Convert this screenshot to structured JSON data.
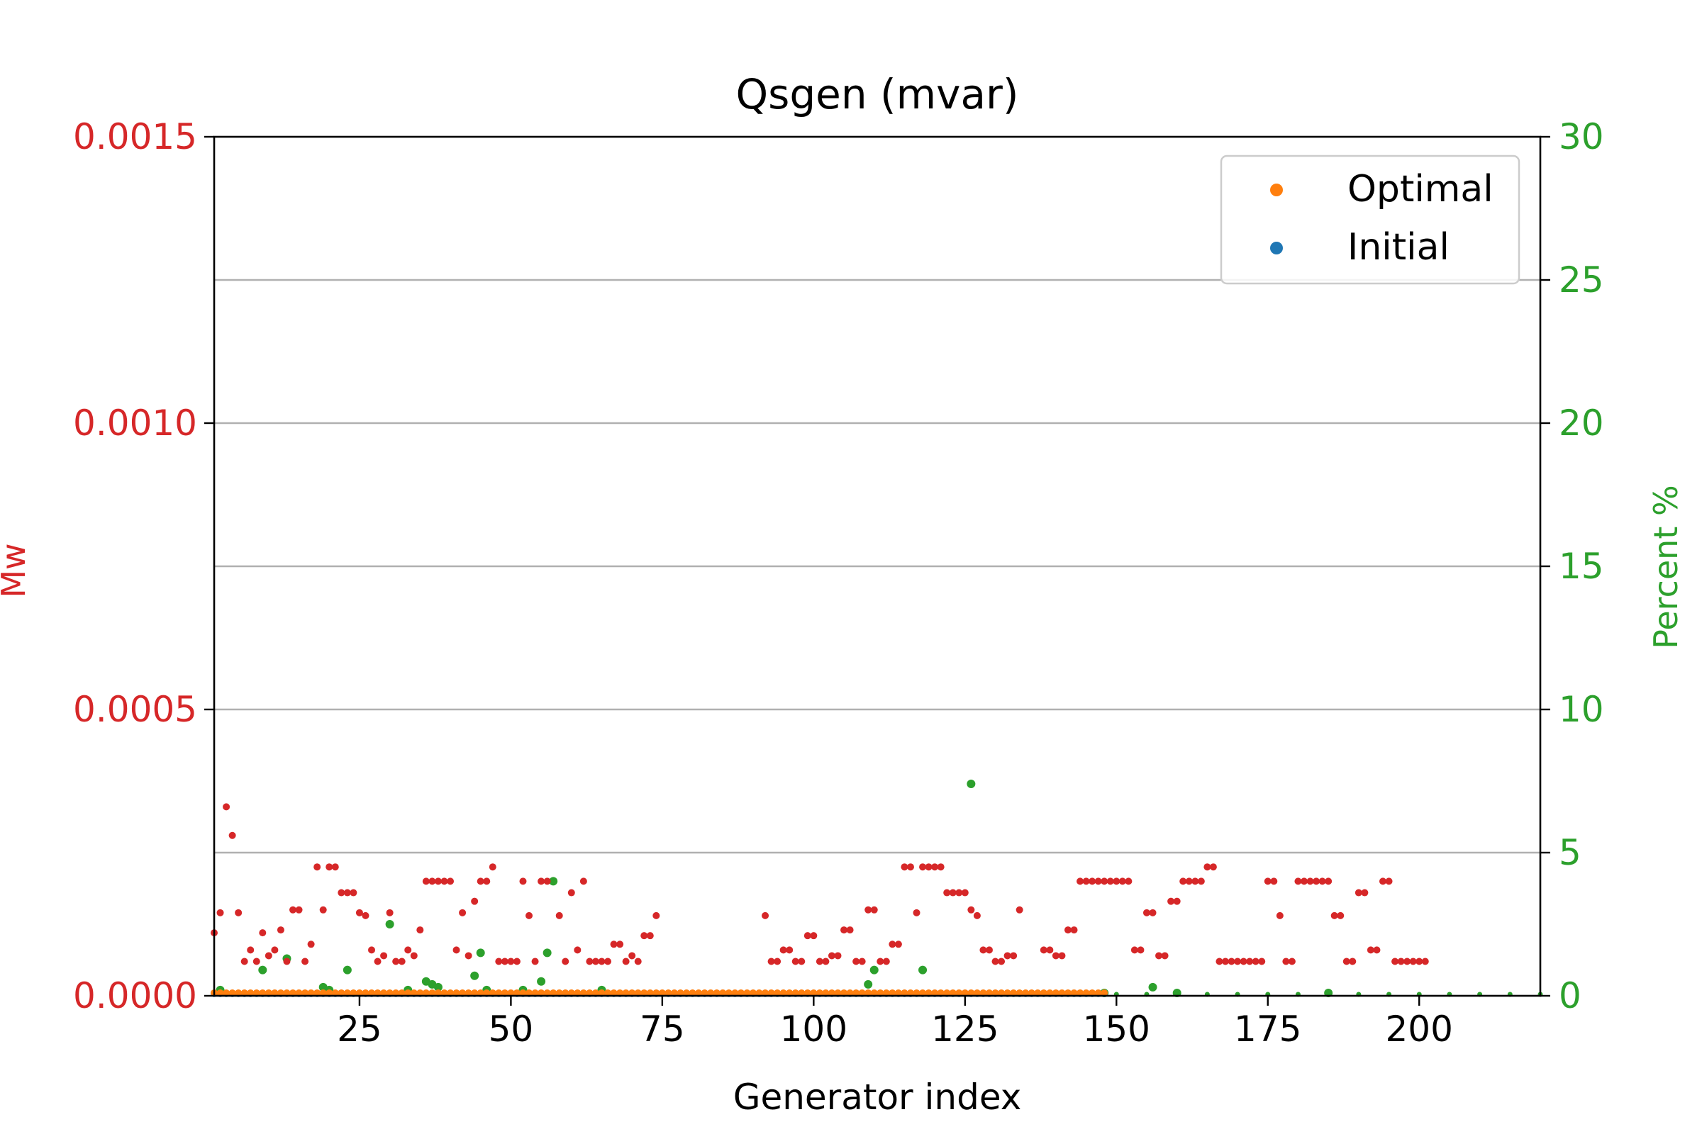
{
  "chart_data": {
    "type": "scatter",
    "title": "Qsgen (mvar)",
    "xlabel": "Generator index",
    "ylabel_left": "Mw",
    "ylabel_right": "Percent %",
    "xlim": [
      1,
      220
    ],
    "ylim_left": [
      0,
      0.0015
    ],
    "ylim_right": [
      0,
      30
    ],
    "x_ticks": [
      25,
      50,
      75,
      100,
      125,
      150,
      175,
      200
    ],
    "y_left_ticks": [
      "0.0000",
      "0.0005",
      "0.0010",
      "0.0015"
    ],
    "y_right_ticks": [
      "0",
      "5",
      "10",
      "15",
      "20",
      "25",
      "30"
    ],
    "grid": "horizontal",
    "legend_position": "top-right",
    "colors": {
      "left_axis": "#d62728",
      "right_axis": "#2ca02c",
      "optimal": "#ff7f0e",
      "initial": "#1f77b4",
      "difference": "#d62728",
      "percent": "#2ca02c",
      "grid": "#b0b0b0"
    },
    "series": [
      {
        "name": "Optimal",
        "axis": "left",
        "color": "#ff7f0e",
        "x_range": [
          1,
          148
        ],
        "value": 5e-06
      },
      {
        "name": "Initial",
        "axis": "left",
        "color": "#1f77b4",
        "x_range": [
          1,
          148
        ],
        "value": 4e-06
      },
      {
        "axis": "left",
        "color": "#d62728",
        "points": [
          [
            1,
            0.00011
          ],
          [
            2,
            0.000145
          ],
          [
            3,
            0.00033
          ],
          [
            4,
            0.00028
          ],
          [
            5,
            0.000145
          ],
          [
            6,
            6e-05
          ],
          [
            7,
            8e-05
          ],
          [
            8,
            6e-05
          ],
          [
            9,
            0.00011
          ],
          [
            10,
            7e-05
          ],
          [
            11,
            8e-05
          ],
          [
            12,
            0.000115
          ],
          [
            13,
            6e-05
          ],
          [
            14,
            0.00015
          ],
          [
            15,
            0.00015
          ],
          [
            16,
            6e-05
          ],
          [
            17,
            9e-05
          ],
          [
            18,
            0.000225
          ],
          [
            19,
            0.00015
          ],
          [
            20,
            0.000225
          ],
          [
            21,
            0.000225
          ],
          [
            22,
            0.00018
          ],
          [
            23,
            0.00018
          ],
          [
            24,
            0.00018
          ],
          [
            25,
            0.000145
          ],
          [
            26,
            0.00014
          ],
          [
            27,
            8e-05
          ],
          [
            28,
            6e-05
          ],
          [
            29,
            7e-05
          ],
          [
            30,
            0.000145
          ],
          [
            31,
            6e-05
          ],
          [
            32,
            6e-05
          ],
          [
            33,
            8e-05
          ],
          [
            34,
            7e-05
          ],
          [
            35,
            0.000115
          ],
          [
            36,
            0.0002
          ],
          [
            37,
            0.0002
          ],
          [
            38,
            0.0002
          ],
          [
            39,
            0.0002
          ],
          [
            40,
            0.0002
          ],
          [
            41,
            8e-05
          ],
          [
            42,
            0.000145
          ],
          [
            43,
            7e-05
          ],
          [
            44,
            0.000165
          ],
          [
            45,
            0.0002
          ],
          [
            46,
            0.0002
          ],
          [
            47,
            0.000225
          ],
          [
            48,
            6e-05
          ],
          [
            49,
            6e-05
          ],
          [
            50,
            6e-05
          ],
          [
            51,
            6e-05
          ],
          [
            52,
            0.0002
          ],
          [
            53,
            0.00014
          ],
          [
            54,
            6e-05
          ],
          [
            55,
            0.0002
          ],
          [
            56,
            0.0002
          ],
          [
            58,
            0.00014
          ],
          [
            59,
            6e-05
          ],
          [
            60,
            0.00018
          ],
          [
            61,
            8e-05
          ],
          [
            62,
            0.0002
          ],
          [
            63,
            6e-05
          ],
          [
            64,
            6e-05
          ],
          [
            65,
            6e-05
          ],
          [
            66,
            6e-05
          ],
          [
            67,
            9e-05
          ],
          [
            68,
            9e-05
          ],
          [
            69,
            6e-05
          ],
          [
            70,
            7e-05
          ],
          [
            71,
            6e-05
          ],
          [
            72,
            0.000105
          ],
          [
            73,
            0.000105
          ],
          [
            74,
            0.00014
          ],
          [
            92,
            0.00014
          ],
          [
            93,
            6e-05
          ],
          [
            94,
            6e-05
          ],
          [
            95,
            8e-05
          ],
          [
            96,
            8e-05
          ],
          [
            97,
            6e-05
          ],
          [
            98,
            6e-05
          ],
          [
            99,
            0.000105
          ],
          [
            100,
            0.000105
          ],
          [
            101,
            6e-05
          ],
          [
            102,
            6e-05
          ],
          [
            103,
            7e-05
          ],
          [
            104,
            7e-05
          ],
          [
            105,
            0.000115
          ],
          [
            106,
            0.000115
          ],
          [
            107,
            6e-05
          ],
          [
            108,
            6e-05
          ],
          [
            109,
            0.00015
          ],
          [
            110,
            0.00015
          ],
          [
            111,
            6e-05
          ],
          [
            112,
            6e-05
          ],
          [
            113,
            9e-05
          ],
          [
            114,
            9e-05
          ],
          [
            115,
            0.000225
          ],
          [
            116,
            0.000225
          ],
          [
            117,
            0.000145
          ],
          [
            118,
            0.000225
          ],
          [
            119,
            0.000225
          ],
          [
            120,
            0.000225
          ],
          [
            121,
            0.000225
          ],
          [
            122,
            0.00018
          ],
          [
            123,
            0.00018
          ],
          [
            124,
            0.00018
          ],
          [
            125,
            0.00018
          ],
          [
            126,
            0.00015
          ],
          [
            127,
            0.00014
          ],
          [
            128,
            8e-05
          ],
          [
            129,
            8e-05
          ],
          [
            130,
            6e-05
          ],
          [
            131,
            6e-05
          ],
          [
            132,
            7e-05
          ],
          [
            133,
            7e-05
          ],
          [
            134,
            0.00015
          ],
          [
            138,
            8e-05
          ],
          [
            139,
            8e-05
          ],
          [
            140,
            7e-05
          ],
          [
            141,
            7e-05
          ],
          [
            142,
            0.000115
          ],
          [
            143,
            0.000115
          ],
          [
            144,
            0.0002
          ],
          [
            145,
            0.0002
          ],
          [
            146,
            0.0002
          ],
          [
            147,
            0.0002
          ],
          [
            148,
            0.0002
          ],
          [
            149,
            0.0002
          ],
          [
            150,
            0.0002
          ],
          [
            151,
            0.0002
          ],
          [
            152,
            0.0002
          ],
          [
            153,
            8e-05
          ],
          [
            154,
            8e-05
          ],
          [
            155,
            0.000145
          ],
          [
            156,
            0.000145
          ],
          [
            157,
            7e-05
          ],
          [
            158,
            7e-05
          ],
          [
            159,
            0.000165
          ],
          [
            160,
            0.000165
          ],
          [
            161,
            0.0002
          ],
          [
            162,
            0.0002
          ],
          [
            163,
            0.0002
          ],
          [
            164,
            0.0002
          ],
          [
            165,
            0.000225
          ],
          [
            166,
            0.000225
          ],
          [
            167,
            6e-05
          ],
          [
            168,
            6e-05
          ],
          [
            169,
            6e-05
          ],
          [
            170,
            6e-05
          ],
          [
            171,
            6e-05
          ],
          [
            172,
            6e-05
          ],
          [
            173,
            6e-05
          ],
          [
            174,
            6e-05
          ],
          [
            175,
            0.0002
          ],
          [
            176,
            0.0002
          ],
          [
            177,
            0.00014
          ],
          [
            178,
            6e-05
          ],
          [
            179,
            6e-05
          ],
          [
            180,
            0.0002
          ],
          [
            181,
            0.0002
          ],
          [
            182,
            0.0002
          ],
          [
            183,
            0.0002
          ],
          [
            184,
            0.0002
          ],
          [
            185,
            0.0002
          ],
          [
            186,
            0.00014
          ],
          [
            187,
            0.00014
          ],
          [
            188,
            6e-05
          ],
          [
            189,
            6e-05
          ],
          [
            190,
            0.00018
          ],
          [
            191,
            0.00018
          ],
          [
            192,
            8e-05
          ],
          [
            193,
            8e-05
          ],
          [
            194,
            0.0002
          ],
          [
            195,
            0.0002
          ],
          [
            196,
            6e-05
          ],
          [
            197,
            6e-05
          ],
          [
            198,
            6e-05
          ],
          [
            199,
            6e-05
          ],
          [
            200,
            6e-05
          ],
          [
            201,
            6e-05
          ]
        ]
      },
      {
        "axis": "right",
        "color": "#2ca02c",
        "points": [
          [
            2,
            0.2
          ],
          [
            9,
            0.9
          ],
          [
            13,
            1.3
          ],
          [
            19,
            0.3
          ],
          [
            20,
            0.2
          ],
          [
            23,
            0.9
          ],
          [
            30,
            2.5
          ],
          [
            33,
            0.2
          ],
          [
            36,
            0.5
          ],
          [
            37,
            0.4
          ],
          [
            38,
            0.3
          ],
          [
            44,
            0.7
          ],
          [
            45,
            1.5
          ],
          [
            46,
            0.2
          ],
          [
            52,
            0.2
          ],
          [
            55,
            0.5
          ],
          [
            56,
            1.5
          ],
          [
            57,
            4.0
          ],
          [
            65,
            0.2
          ],
          [
            109,
            0.4
          ],
          [
            110,
            0.9
          ],
          [
            118,
            0.9
          ],
          [
            126,
            7.4
          ],
          [
            148,
            0.1
          ],
          [
            156,
            0.3
          ],
          [
            160,
            0.1
          ],
          [
            185,
            0.1
          ],
          [
            150,
            0.05
          ],
          [
            155,
            0.05
          ],
          [
            165,
            0.05
          ],
          [
            170,
            0.05
          ],
          [
            175,
            0.05
          ],
          [
            180,
            0.05
          ],
          [
            190,
            0.05
          ],
          [
            195,
            0.05
          ],
          [
            200,
            0.05
          ],
          [
            205,
            0.05
          ],
          [
            210,
            0.05
          ],
          [
            215,
            0.05
          ],
          [
            220,
            0.05
          ]
        ]
      }
    ]
  }
}
